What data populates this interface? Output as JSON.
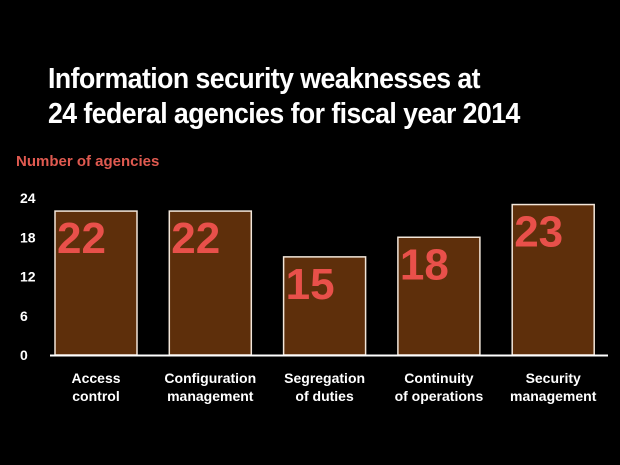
{
  "chart_data": {
    "type": "bar",
    "title_lines": [
      "Information security weaknesses at",
      "24 federal agencies for fiscal year 2014"
    ],
    "ylabel": "Number of agencies",
    "xlabel": "",
    "categories": [
      [
        "Access",
        "control"
      ],
      [
        "Configuration",
        "management"
      ],
      [
        "Segregation",
        "of duties"
      ],
      [
        "Continuity",
        "of operations"
      ],
      [
        "Security",
        "management"
      ]
    ],
    "values": [
      22,
      22,
      15,
      18,
      23
    ],
    "value_labels": [
      "22",
      "22",
      "15",
      "18",
      "23"
    ],
    "yticks": [
      "0",
      "6",
      "12",
      "18",
      "24"
    ],
    "ylim": [
      0,
      24
    ],
    "grid": false,
    "legend": "none",
    "colors": {
      "background": "#000000",
      "bar_fill": "#5e2f0b",
      "bar_stroke": "#f2e6da",
      "value_label": "#e8504a",
      "ylabel": "#e05a50",
      "text": "#ffffff"
    }
  }
}
